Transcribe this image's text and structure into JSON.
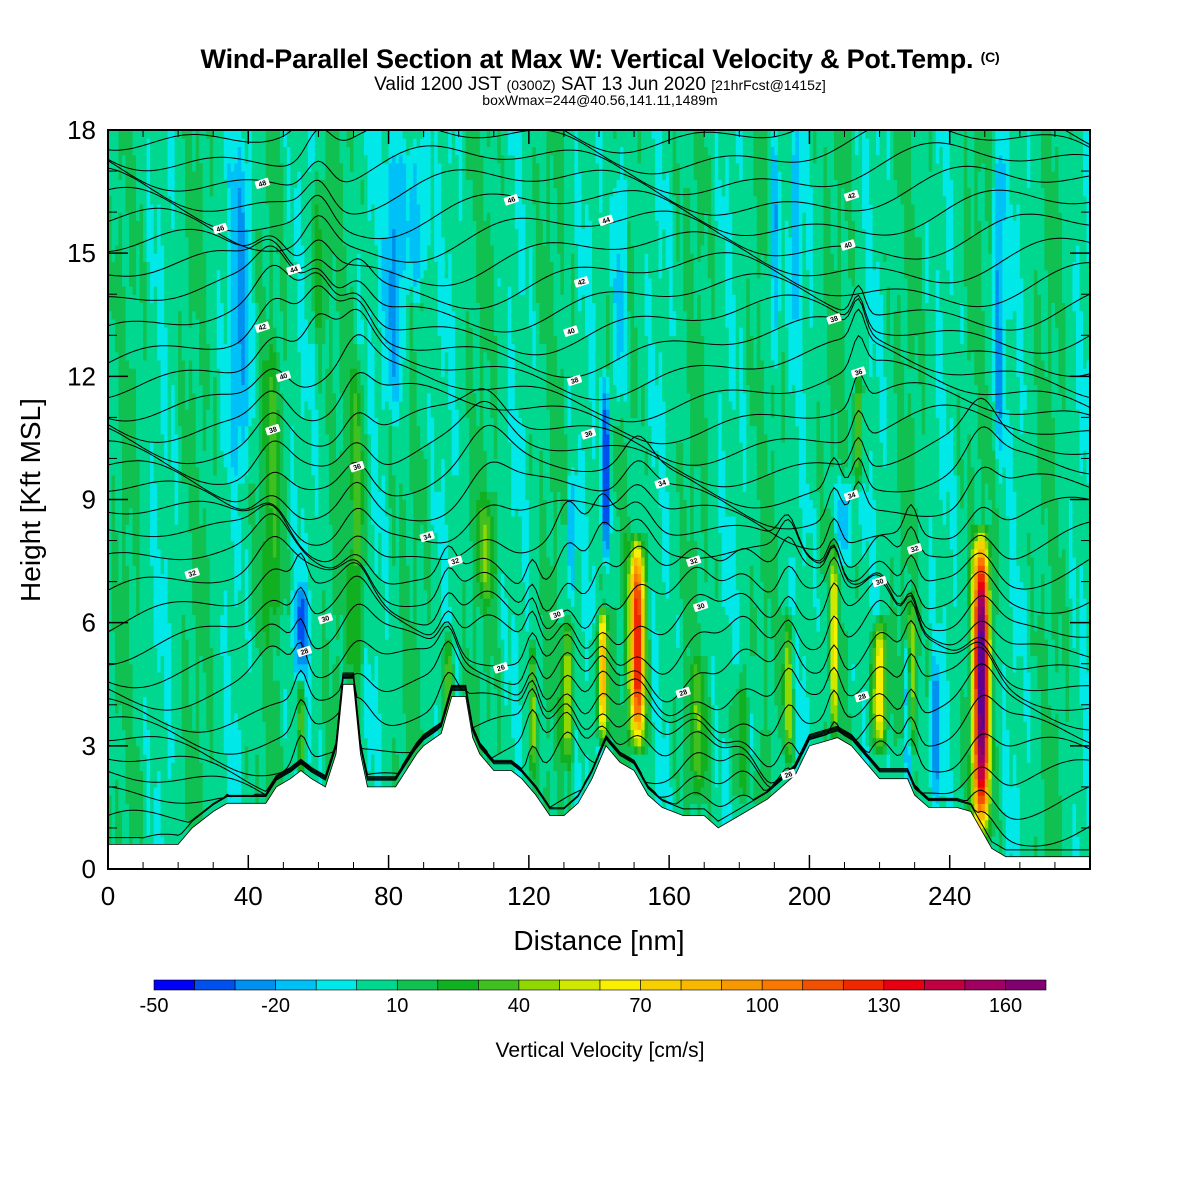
{
  "title": {
    "main": "Wind-Parallel Section at Max W: Vertical Velocity & Pot.Temp.",
    "mark": "(C)",
    "line2_a": "Valid 1200 JST ",
    "line2_b": "(0300Z)",
    "line2_c": " SAT 13 Jun 2020 ",
    "line2_d": "[21hrFcst@1415z]",
    "line3": "boxWmax=244@40.56,141.11,1489m"
  },
  "chart_data": {
    "type": "heatmap",
    "xlabel": "Distance [nm]",
    "ylabel": "Height [Kft MSL]",
    "xlim": [
      0,
      280
    ],
    "ylim": [
      0,
      18
    ],
    "x_ticks": [
      "0",
      "40",
      "80",
      "120",
      "160",
      "200",
      "240"
    ],
    "y_ticks": [
      "0",
      "3",
      "6",
      "9",
      "12",
      "15",
      "18"
    ],
    "colorbar": {
      "label": "Vertical Velocity [cm/s]",
      "ticks": [
        "-50",
        "-20",
        "10",
        "40",
        "70",
        "100",
        "130",
        "160"
      ],
      "levels": [
        -50,
        -40,
        -30,
        -20,
        -10,
        0,
        10,
        20,
        30,
        40,
        50,
        60,
        70,
        80,
        90,
        100,
        110,
        120,
        130,
        140,
        150,
        160,
        170
      ],
      "colors": [
        "#0000f4",
        "#0050f0",
        "#0090f0",
        "#00c0f8",
        "#00e8e8",
        "#00d890",
        "#10c050",
        "#10b020",
        "#40c020",
        "#90d800",
        "#d0e800",
        "#f8f000",
        "#f8d000",
        "#f8b800",
        "#f89800",
        "#f87800",
        "#f05000",
        "#f02800",
        "#e80010",
        "#c00040",
        "#a00060",
        "#800070",
        "#600090"
      ]
    },
    "terrain_kft": [
      [
        0,
        0.6
      ],
      [
        12,
        0.6
      ],
      [
        20,
        0.6
      ],
      [
        24,
        1.0
      ],
      [
        30,
        1.4
      ],
      [
        34,
        1.6
      ],
      [
        40,
        1.6
      ],
      [
        45,
        1.6
      ],
      [
        48,
        2.0
      ],
      [
        52,
        2.2
      ],
      [
        55,
        2.4
      ],
      [
        58,
        2.2
      ],
      [
        62,
        2.0
      ],
      [
        65,
        2.8
      ],
      [
        67,
        4.5
      ],
      [
        70,
        4.5
      ],
      [
        72,
        2.8
      ],
      [
        74,
        2.0
      ],
      [
        78,
        2.0
      ],
      [
        82,
        2.0
      ],
      [
        85,
        2.4
      ],
      [
        88,
        2.8
      ],
      [
        90,
        3.0
      ],
      [
        95,
        3.3
      ],
      [
        98,
        4.2
      ],
      [
        102,
        4.2
      ],
      [
        104,
        3.2
      ],
      [
        106,
        2.8
      ],
      [
        110,
        2.4
      ],
      [
        115,
        2.4
      ],
      [
        118,
        2.2
      ],
      [
        122,
        1.8
      ],
      [
        126,
        1.3
      ],
      [
        130,
        1.3
      ],
      [
        134,
        1.6
      ],
      [
        138,
        2.2
      ],
      [
        142,
        3.0
      ],
      [
        146,
        2.6
      ],
      [
        150,
        2.4
      ],
      [
        154,
        1.8
      ],
      [
        158,
        1.5
      ],
      [
        164,
        1.3
      ],
      [
        170,
        1.3
      ],
      [
        174,
        1.0
      ],
      [
        180,
        1.3
      ],
      [
        184,
        1.5
      ],
      [
        188,
        1.7
      ],
      [
        192,
        2.0
      ],
      [
        196,
        2.3
      ],
      [
        200,
        3.0
      ],
      [
        204,
        3.1
      ],
      [
        208,
        3.2
      ],
      [
        212,
        3.0
      ],
      [
        216,
        2.6
      ],
      [
        220,
        2.2
      ],
      [
        224,
        2.2
      ],
      [
        228,
        2.2
      ],
      [
        230,
        1.8
      ],
      [
        234,
        1.5
      ],
      [
        238,
        1.5
      ],
      [
        242,
        1.5
      ],
      [
        246,
        1.4
      ],
      [
        248,
        1.1
      ],
      [
        252,
        0.5
      ],
      [
        256,
        0.3
      ],
      [
        260,
        0.3
      ],
      [
        270,
        0.3
      ],
      [
        280,
        0.3
      ]
    ],
    "theta_labels": [
      {
        "text": "48",
        "x": 44,
        "y": 16.7
      },
      {
        "text": "46",
        "x": 32,
        "y": 15.6
      },
      {
        "text": "44",
        "x": 53,
        "y": 14.6
      },
      {
        "text": "42",
        "x": 44,
        "y": 13.2
      },
      {
        "text": "40",
        "x": 50,
        "y": 12.0
      },
      {
        "text": "38",
        "x": 47,
        "y": 10.7
      },
      {
        "text": "36",
        "x": 71,
        "y": 9.8
      },
      {
        "text": "34",
        "x": 91,
        "y": 8.1
      },
      {
        "text": "32",
        "x": 99,
        "y": 7.5
      },
      {
        "text": "30",
        "x": 62,
        "y": 6.1
      },
      {
        "text": "28",
        "x": 56,
        "y": 5.3
      },
      {
        "text": "26",
        "x": 112,
        "y": 4.9
      },
      {
        "text": "46",
        "x": 115,
        "y": 16.3
      },
      {
        "text": "44",
        "x": 142,
        "y": 15.8
      },
      {
        "text": "42",
        "x": 135,
        "y": 14.3
      },
      {
        "text": "40",
        "x": 132,
        "y": 13.1
      },
      {
        "text": "38",
        "x": 133,
        "y": 11.9
      },
      {
        "text": "36",
        "x": 137,
        "y": 10.6
      },
      {
        "text": "34",
        "x": 158,
        "y": 9.4
      },
      {
        "text": "32",
        "x": 167,
        "y": 7.5
      },
      {
        "text": "30",
        "x": 128,
        "y": 6.2
      },
      {
        "text": "30",
        "x": 169,
        "y": 6.4
      },
      {
        "text": "28",
        "x": 164,
        "y": 4.3
      },
      {
        "text": "42",
        "x": 212,
        "y": 16.4
      },
      {
        "text": "40",
        "x": 211,
        "y": 15.2
      },
      {
        "text": "38",
        "x": 207,
        "y": 13.4
      },
      {
        "text": "36",
        "x": 214,
        "y": 12.1
      },
      {
        "text": "34",
        "x": 212,
        "y": 9.1
      },
      {
        "text": "32",
        "x": 230,
        "y": 7.8
      },
      {
        "text": "30",
        "x": 220,
        "y": 7.0
      },
      {
        "text": "28",
        "x": 215,
        "y": 4.2
      },
      {
        "text": "26",
        "x": 194,
        "y": 2.3
      },
      {
        "text": "32",
        "x": 24,
        "y": 7.2
      }
    ],
    "updraft_cores": [
      {
        "x": 151,
        "zb": 3.0,
        "zt": 8.0,
        "w": 120,
        "hw": 2.2
      },
      {
        "x": 249,
        "zb": 0.8,
        "zt": 8.2,
        "w": 170,
        "hw": 2.2
      },
      {
        "x": 141,
        "zb": 3.2,
        "zt": 6.2,
        "w": 85,
        "hw": 1.5
      },
      {
        "x": 220,
        "zb": 3.0,
        "zt": 6.0,
        "w": 70,
        "hw": 2.0
      },
      {
        "x": 207,
        "zb": 3.2,
        "zt": 7.8,
        "w": 55,
        "hw": 1.0
      },
      {
        "x": 229,
        "zb": 3.0,
        "zt": 6.5,
        "w": 50,
        "hw": 1.0
      },
      {
        "x": 131,
        "zb": 2.6,
        "zt": 6.0,
        "w": 42,
        "hw": 1.6
      },
      {
        "x": 97,
        "zb": 3.2,
        "zt": 5.8,
        "w": 40,
        "hw": 1.3
      },
      {
        "x": 121,
        "zb": 2.4,
        "zt": 5.5,
        "w": 40,
        "hw": 1.0
      },
      {
        "x": 194,
        "zb": 2.6,
        "zt": 6.2,
        "w": 42,
        "hw": 1.4
      },
      {
        "x": 181,
        "zb": 1.8,
        "zt": 4.8,
        "w": 28,
        "hw": 2.5
      },
      {
        "x": 55,
        "zb": 2.2,
        "zt": 4.5,
        "w": 35,
        "hw": 1.0
      },
      {
        "x": 71,
        "zb": 4.4,
        "zt": 12.5,
        "w": 28,
        "hw": 2.2
      },
      {
        "x": 47,
        "zb": 5.5,
        "zt": 13.0,
        "w": 22,
        "hw": 2.5
      },
      {
        "x": 214,
        "zb": 9.5,
        "zt": 12.0,
        "w": 48,
        "hw": 1.0
      },
      {
        "x": 168,
        "zb": 1.8,
        "zt": 5.0,
        "w": 25,
        "hw": 2.5
      },
      {
        "x": 60,
        "zb": 13.0,
        "zt": 17.0,
        "w": 20,
        "hw": 2.0
      },
      {
        "x": 108,
        "zb": 6.5,
        "zt": 9.0,
        "w": 25,
        "hw": 3.0
      }
    ],
    "downdraft_bands": [
      {
        "x": 38,
        "zb": 9.5,
        "zt": 18.0,
        "w": -25,
        "hw": 3.0
      },
      {
        "x": 82,
        "zb": 11.0,
        "zt": 18.0,
        "w": -30,
        "hw": 3.0
      },
      {
        "x": 88,
        "zb": 14.0,
        "zt": 18.0,
        "w": -25,
        "hw": 3.0
      },
      {
        "x": 142,
        "zb": 7.5,
        "zt": 12.0,
        "w": -45,
        "hw": 1.2
      },
      {
        "x": 146,
        "zb": 11.0,
        "zt": 18.0,
        "w": -25,
        "hw": 2.0
      },
      {
        "x": 190,
        "zb": 12.0,
        "zt": 18.0,
        "w": -28,
        "hw": 1.6
      },
      {
        "x": 196,
        "zb": 13.0,
        "zt": 18.0,
        "w": -22,
        "hw": 1.2
      },
      {
        "x": 254,
        "zb": 10.0,
        "zt": 18.0,
        "w": -30,
        "hw": 1.5
      },
      {
        "x": 55,
        "zb": 4.8,
        "zt": 6.8,
        "w": -35,
        "hw": 2.0
      },
      {
        "x": 228,
        "zb": 1.6,
        "zt": 5.5,
        "w": -40,
        "hw": 1.0
      },
      {
        "x": 236,
        "zb": 1.6,
        "zt": 5.0,
        "w": -30,
        "hw": 1.4
      },
      {
        "x": 184,
        "zb": 2.5,
        "zt": 5.0,
        "w": -20,
        "hw": 1.8
      },
      {
        "x": 132,
        "zb": 6.5,
        "zt": 9.5,
        "w": -25,
        "hw": 1.2
      },
      {
        "x": 210,
        "zb": 7.5,
        "zt": 9.5,
        "w": -25,
        "hw": 2.5
      }
    ]
  }
}
